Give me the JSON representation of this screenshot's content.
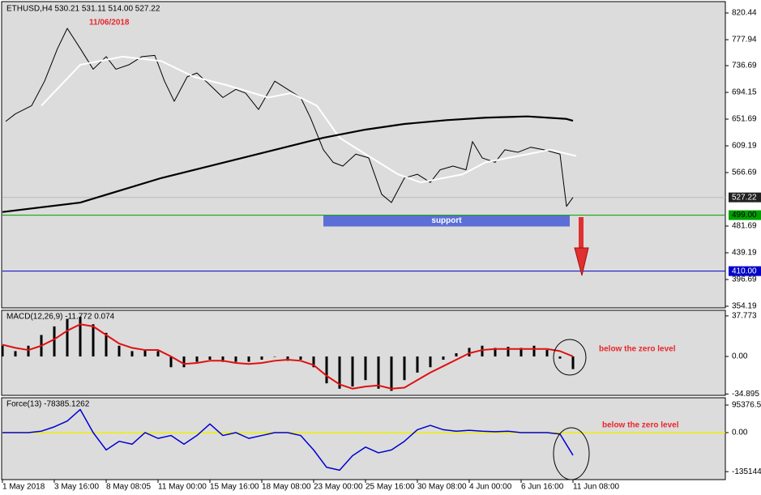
{
  "chart_data": [
    {
      "type": "line",
      "title": "ETHUSD,H4  530.21 531.11 514.00 527.22",
      "annotations": [
        {
          "text": "11/06/2018",
          "color": "#e8262c"
        }
      ],
      "xlim": [
        0,
        222
      ],
      "ylim": [
        351.6,
        837.2
      ],
      "yticks": [
        820.44,
        777.94,
        736.69,
        694.15,
        651.69,
        609.19,
        566.69,
        481.69,
        439.19,
        396.69,
        354.19
      ],
      "series": [
        {
          "color": "#000000",
          "width": 1,
          "x": [
            1,
            4,
            9,
            13,
            17,
            20,
            24,
            28,
            32,
            35,
            39,
            43,
            47,
            50,
            53,
            57,
            60,
            64,
            68,
            72,
            75,
            79,
            84,
            88,
            92,
            95,
            99,
            102,
            105,
            109,
            113,
            117,
            120,
            124,
            128,
            132,
            135,
            139,
            143,
            145,
            148,
            152,
            155,
            159,
            163,
            167,
            172,
            174,
            176
          ],
          "values": [
            648,
            660,
            673,
            712,
            764,
            796,
            764,
            731,
            751,
            731,
            738,
            751,
            753,
            712,
            680,
            719,
            725,
            706,
            686,
            699,
            693,
            667,
            712,
            699,
            686,
            654,
            603,
            583,
            577,
            596,
            590,
            532,
            519,
            558,
            564,
            551,
            571,
            577,
            571,
            616,
            590,
            583,
            603,
            599,
            607,
            603,
            596,
            513,
            527.22
          ]
        },
        {
          "color": "#ffffff",
          "width": 2,
          "x": [
            12,
            24,
            37,
            49,
            59,
            69,
            82,
            89,
            97,
            104,
            112,
            122,
            129,
            142,
            149,
            162,
            169,
            177
          ],
          "values": [
            673,
            738,
            751,
            744,
            719,
            706,
            686,
            693,
            673,
            622,
            596,
            564,
            551,
            564,
            583,
            596,
            603,
            593
          ]
        },
        {
          "color": "#000000",
          "width": 2.2,
          "x": [
            0,
            24,
            49,
            74,
            99,
            112,
            124,
            137,
            149,
            162,
            174,
            176
          ],
          "values": [
            504,
            519,
            558,
            590,
            622,
            635,
            644,
            650,
            654,
            656,
            652,
            649
          ]
        }
      ],
      "levels": [
        {
          "value": 499,
          "label": "499.00",
          "color": "#00a000",
          "text_color": "#000000"
        },
        {
          "value": 410,
          "label": "410.00",
          "color": "#0000c8",
          "text_color": "#ffffff"
        }
      ],
      "last_price": {
        "value": 527.22,
        "label": "527.22"
      },
      "zone": {
        "label": "support",
        "xlim": [
          99,
          175
        ],
        "ylim": [
          481,
          499
        ],
        "color": "#5b6fd6"
      }
    },
    {
      "type": "macd",
      "title": "MACD(12,26,9) -11.772 0.074",
      "annotations": [
        {
          "text": "below the zero level",
          "color": "#e8262c"
        }
      ],
      "xlim": [
        0,
        222
      ],
      "ylim": [
        -36.2,
        43
      ],
      "yticks": [
        37.773,
        {
          "value": 0,
          "label": "0.00"
        },
        -34.895
      ],
      "series": [
        {
          "style": "histogram",
          "color": "#000000",
          "x": [
            0,
            4,
            8,
            12,
            16,
            20,
            24,
            28,
            32,
            36,
            40,
            44,
            48,
            52,
            56,
            60,
            64,
            68,
            72,
            76,
            80,
            84,
            88,
            92,
            96,
            100,
            104,
            108,
            112,
            116,
            120,
            124,
            128,
            132,
            136,
            140,
            144,
            148,
            152,
            156,
            160,
            164,
            168,
            172,
            176
          ],
          "values": [
            10,
            5,
            10,
            20,
            28,
            35,
            37,
            30,
            22,
            10,
            5,
            6,
            5,
            -10,
            -10,
            -5,
            -3,
            -5,
            -5,
            -5,
            -3,
            0,
            -4,
            -3,
            -10,
            -25,
            -30,
            -28,
            -22,
            -30,
            -32,
            -22,
            -15,
            -10,
            -3,
            3,
            8,
            10,
            8,
            9,
            8,
            10,
            6,
            -2,
            -11.772
          ]
        },
        {
          "style": "line",
          "color": "#e01010",
          "width": 2,
          "x": [
            0,
            4,
            8,
            12,
            16,
            20,
            24,
            28,
            32,
            36,
            40,
            44,
            48,
            52,
            56,
            60,
            64,
            68,
            72,
            76,
            80,
            84,
            88,
            92,
            96,
            100,
            104,
            108,
            112,
            116,
            120,
            124,
            128,
            132,
            136,
            140,
            144,
            148,
            152,
            156,
            160,
            164,
            168,
            172,
            176
          ],
          "values": [
            11,
            8,
            6,
            10,
            16,
            24,
            30,
            28,
            20,
            12,
            8,
            6,
            6,
            0,
            -7,
            -6,
            -4,
            -4,
            -6,
            -7,
            -6,
            -4,
            -3,
            -4,
            -8,
            -18,
            -26,
            -30,
            -28,
            -27,
            -30,
            -29,
            -22,
            -15,
            -9,
            -3,
            3,
            6,
            7,
            7,
            7,
            7,
            7,
            5,
            0.074
          ]
        }
      ]
    },
    {
      "type": "line",
      "title": "Force(13) -78385.1262",
      "annotations": [
        {
          "text": "below the zero level",
          "color": "#e8262c"
        }
      ],
      "xlim": [
        0,
        222
      ],
      "ylim": [
        -162700,
        120600
      ],
      "yticks": [
        95376.57,
        {
          "value": 0,
          "label": "0.00"
        },
        {
          "value": -135144,
          "label": "-135144."
        }
      ],
      "zero_line_color": "#f0f000",
      "series": [
        {
          "style": "line",
          "color": "#0000d0",
          "width": 1.5,
          "x": [
            0,
            4,
            8,
            12,
            16,
            20,
            24,
            28,
            32,
            36,
            40,
            44,
            48,
            52,
            56,
            60,
            64,
            68,
            72,
            76,
            80,
            84,
            88,
            92,
            96,
            100,
            104,
            108,
            112,
            116,
            120,
            124,
            128,
            132,
            136,
            140,
            144,
            148,
            152,
            156,
            160,
            164,
            168,
            172,
            176
          ],
          "values": [
            0,
            0,
            0,
            5000,
            20000,
            40000,
            80000,
            0,
            -60000,
            -30000,
            -40000,
            0,
            -20000,
            -10000,
            -40000,
            -10000,
            30000,
            -10000,
            0,
            -20000,
            -10000,
            0,
            0,
            -10000,
            -60000,
            -120000,
            -130000,
            -80000,
            -50000,
            -70000,
            -60000,
            -30000,
            10000,
            25000,
            10000,
            5000,
            8000,
            5000,
            3000,
            5000,
            0,
            0,
            0,
            -5000,
            -78385.1262
          ]
        }
      ],
      "xticks": [
        {
          "value": 0,
          "label": "1 May 2018"
        },
        {
          "value": 16,
          "label": "3 May 16:00"
        },
        {
          "value": 32,
          "label": "8 May 08:05"
        },
        {
          "value": 48,
          "label": "11 May 00:00"
        },
        {
          "value": 64,
          "label": "15 May 16:00"
        },
        {
          "value": 80,
          "label": "18 May 08:00"
        },
        {
          "value": 96,
          "label": "23 May 00:00"
        },
        {
          "value": 112,
          "label": "25 May 16:00"
        },
        {
          "value": 128,
          "label": "30 May 08:00"
        },
        {
          "value": 144,
          "label": "4 Jun 00:00"
        },
        {
          "value": 160,
          "label": "6 Jun 16:00"
        },
        {
          "value": 176,
          "label": "11 Jun 08:00"
        }
      ]
    }
  ]
}
